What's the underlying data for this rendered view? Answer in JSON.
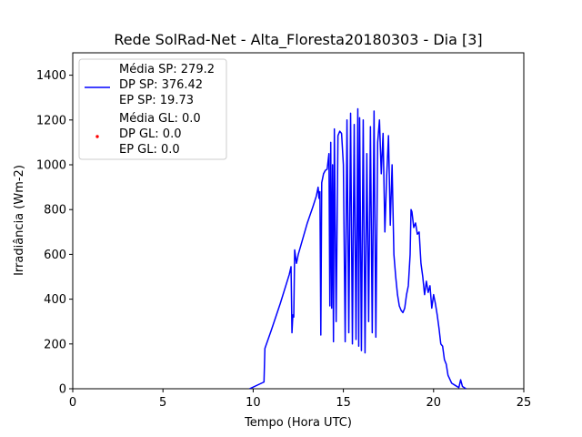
{
  "chart_data": {
    "type": "line",
    "title": "Rede SolRad-Net - Alta_Floresta20180303 - Dia [3]",
    "xlabel": "Tempo (Hora UTC)",
    "ylabel": "Irradiância (Wm-2)",
    "xlim": [
      0,
      25
    ],
    "ylim": [
      0,
      1500
    ],
    "xticks": [
      0,
      5,
      10,
      15,
      20,
      25
    ],
    "yticks": [
      0,
      200,
      400,
      600,
      800,
      1000,
      1200,
      1400
    ],
    "grid": false,
    "legend_position": "top-left",
    "series": [
      {
        "name": "SP",
        "legend_lines": [
          "Média SP: 279.2",
          "DP SP: 376.42",
          "EP SP: 19.73"
        ],
        "color": "#0000ff",
        "style": "line",
        "points": [
          [
            9.8,
            0
          ],
          [
            10.6,
            30
          ],
          [
            10.65,
            180
          ],
          [
            11.0,
            260
          ],
          [
            11.5,
            380
          ],
          [
            12.0,
            510
          ],
          [
            12.1,
            545
          ],
          [
            12.15,
            250
          ],
          [
            12.2,
            330
          ],
          [
            12.25,
            320
          ],
          [
            12.3,
            620
          ],
          [
            12.4,
            560
          ],
          [
            12.5,
            600
          ],
          [
            13.0,
            740
          ],
          [
            13.3,
            810
          ],
          [
            13.5,
            860
          ],
          [
            13.6,
            900
          ],
          [
            13.65,
            850
          ],
          [
            13.7,
            880
          ],
          [
            13.75,
            240
          ],
          [
            13.8,
            920
          ],
          [
            13.9,
            960
          ],
          [
            14.0,
            975
          ],
          [
            14.1,
            980
          ],
          [
            14.2,
            1050
          ],
          [
            14.25,
            370
          ],
          [
            14.3,
            1100
          ],
          [
            14.35,
            360
          ],
          [
            14.4,
            1000
          ],
          [
            14.45,
            210
          ],
          [
            14.5,
            1160
          ],
          [
            14.6,
            300
          ],
          [
            14.7,
            1130
          ],
          [
            14.8,
            1150
          ],
          [
            14.9,
            1140
          ],
          [
            15.0,
            1000
          ],
          [
            15.1,
            210
          ],
          [
            15.2,
            1200
          ],
          [
            15.3,
            250
          ],
          [
            15.4,
            1230
          ],
          [
            15.5,
            200
          ],
          [
            15.6,
            1180
          ],
          [
            15.7,
            220
          ],
          [
            15.8,
            1250
          ],
          [
            15.85,
            190
          ],
          [
            15.9,
            1210
          ],
          [
            16.0,
            170
          ],
          [
            16.1,
            1200
          ],
          [
            16.2,
            160
          ],
          [
            16.3,
            1050
          ],
          [
            16.4,
            300
          ],
          [
            16.5,
            1170
          ],
          [
            16.6,
            250
          ],
          [
            16.7,
            1240
          ],
          [
            16.8,
            230
          ],
          [
            16.9,
            1100
          ],
          [
            17.0,
            1200
          ],
          [
            17.1,
            960
          ],
          [
            17.2,
            1140
          ],
          [
            17.3,
            700
          ],
          [
            17.4,
            950
          ],
          [
            17.5,
            1130
          ],
          [
            17.6,
            730
          ],
          [
            17.7,
            1000
          ],
          [
            17.8,
            600
          ],
          [
            17.9,
            500
          ],
          [
            18.0,
            420
          ],
          [
            18.1,
            370
          ],
          [
            18.2,
            350
          ],
          [
            18.3,
            340
          ],
          [
            18.4,
            360
          ],
          [
            18.5,
            420
          ],
          [
            18.6,
            460
          ],
          [
            18.7,
            600
          ],
          [
            18.75,
            800
          ],
          [
            18.8,
            790
          ],
          [
            18.9,
            720
          ],
          [
            19.0,
            740
          ],
          [
            19.1,
            690
          ],
          [
            19.2,
            700
          ],
          [
            19.3,
            560
          ],
          [
            19.4,
            500
          ],
          [
            19.5,
            420
          ],
          [
            19.6,
            480
          ],
          [
            19.7,
            430
          ],
          [
            19.8,
            460
          ],
          [
            19.9,
            360
          ],
          [
            20.0,
            420
          ],
          [
            20.1,
            380
          ],
          [
            20.2,
            330
          ],
          [
            20.3,
            270
          ],
          [
            20.4,
            200
          ],
          [
            20.5,
            190
          ],
          [
            20.6,
            130
          ],
          [
            20.7,
            110
          ],
          [
            20.8,
            60
          ],
          [
            21.0,
            25
          ],
          [
            21.2,
            15
          ],
          [
            21.4,
            5
          ],
          [
            21.5,
            40
          ],
          [
            21.6,
            10
          ],
          [
            21.8,
            0
          ]
        ]
      },
      {
        "name": "GL",
        "legend_lines": [
          "Média GL: 0.0",
          "DP GL: 0.0",
          "EP GL: 0.0"
        ],
        "color": "#ff0000",
        "style": "scatter",
        "points": []
      }
    ]
  }
}
